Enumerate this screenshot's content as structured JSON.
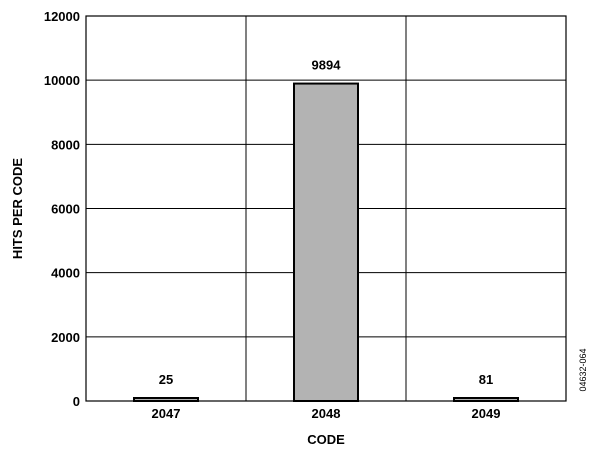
{
  "chart_data": {
    "type": "bar",
    "categories": [
      "2047",
      "2048",
      "2049"
    ],
    "values": [
      25,
      9894,
      81
    ],
    "data_labels": [
      "25",
      "9894",
      "81"
    ],
    "xlabel": "CODE",
    "ylabel": "HITS PER CODE",
    "ylim": [
      0,
      12000
    ],
    "yticks": [
      0,
      2000,
      4000,
      6000,
      8000,
      10000,
      12000
    ],
    "ytick_labels": [
      "0",
      "2000",
      "4000",
      "6000",
      "8000",
      "10000",
      "12000"
    ],
    "grid": true,
    "legend": "none",
    "bar_fill": "#b3b3b3",
    "bar_stroke": "#000000"
  },
  "figure_id": "04632-064"
}
